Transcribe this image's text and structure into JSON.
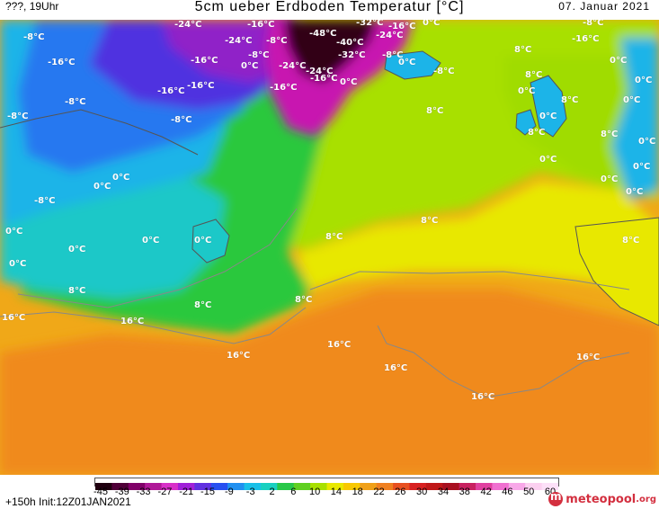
{
  "header": {
    "left": "???, 19Uhr",
    "title": "5cm ueber Erdboden Temperatur [°C]",
    "right": "07. Januar 2021"
  },
  "map": {
    "colors": {
      "water": "#f0a818",
      "deep_orange": "#f08a1c",
      "yellow": "#e8e800",
      "lime": "#a8e000",
      "green": "#2cc83c",
      "teal": "#1cc8c8",
      "cyan": "#1cb4e8",
      "blue": "#2878f0",
      "indigo": "#5030e0",
      "purple": "#9020c8",
      "magenta": "#c818b0",
      "dark": "#300018",
      "coast": "#555555",
      "isotherm": "#888888"
    },
    "labels": [
      {
        "text": "-24°C"
      },
      {
        "text": "-16°C"
      },
      {
        "text": "-32°C"
      },
      {
        "text": "0°C"
      },
      {
        "text": "-8°C"
      },
      {
        "text": "-24°C"
      },
      {
        "text": "-8°C"
      },
      {
        "text": "-48°C"
      },
      {
        "text": "-16°C"
      },
      {
        "text": "-24°C"
      },
      {
        "text": "-16°C"
      },
      {
        "text": "-40°C"
      },
      {
        "text": "-32°C"
      },
      {
        "text": "-8°C"
      },
      {
        "text": "-16°C"
      },
      {
        "text": "-8°C"
      },
      {
        "text": "-8°C"
      },
      {
        "text": "0°C"
      },
      {
        "text": "-24°C"
      },
      {
        "text": "-24°C"
      },
      {
        "text": "-16°C"
      },
      {
        "text": "0°C"
      },
      {
        "text": "-16°C"
      },
      {
        "text": "-16°C"
      },
      {
        "text": "-16°C"
      },
      {
        "text": "-16°C"
      },
      {
        "text": "0°C"
      },
      {
        "text": "-8°C"
      },
      {
        "text": "0°C"
      },
      {
        "text": "0°C"
      },
      {
        "text": "8°C"
      },
      {
        "text": "8°C"
      },
      {
        "text": "0°C"
      },
      {
        "text": "0°C"
      },
      {
        "text": "-8°C"
      },
      {
        "text": "-8°C"
      },
      {
        "text": "-8°C"
      },
      {
        "text": "8°C"
      },
      {
        "text": "8°C"
      },
      {
        "text": "0°C"
      },
      {
        "text": "8°C"
      },
      {
        "text": "8°C"
      },
      {
        "text": "0°C"
      },
      {
        "text": "0°C"
      },
      {
        "text": "0°C"
      },
      {
        "text": "0°C"
      },
      {
        "text": "0°C"
      },
      {
        "text": "-8°C"
      },
      {
        "text": "0°C"
      },
      {
        "text": "0°C"
      },
      {
        "text": "8°C"
      },
      {
        "text": "0°C"
      },
      {
        "text": "8°C"
      },
      {
        "text": "0°C"
      },
      {
        "text": "0°C"
      },
      {
        "text": "0°C"
      },
      {
        "text": "8°C"
      },
      {
        "text": "8°C"
      },
      {
        "text": "8°C"
      },
      {
        "text": "0°C"
      },
      {
        "text": "16°C"
      },
      {
        "text": "16°C"
      },
      {
        "text": "16°C"
      },
      {
        "text": "16°C"
      },
      {
        "text": "16°C"
      },
      {
        "text": "16°C"
      },
      {
        "text": "16°C"
      },
      {
        "text": "8°C"
      }
    ]
  },
  "colorbar": {
    "ticks": [
      "-45",
      "-39",
      "-33",
      "-27",
      "-21",
      "-15",
      "-9",
      "-3",
      "2",
      "6",
      "10",
      "14",
      "18",
      "22",
      "26",
      "30",
      "34",
      "38",
      "42",
      "46",
      "50",
      "60"
    ],
    "colors": [
      "#200010",
      "#500038",
      "#800068",
      "#b01898",
      "#d830c8",
      "#a020d8",
      "#6030e0",
      "#2850f0",
      "#2090f0",
      "#18c0e8",
      "#18d0c0",
      "#28c848",
      "#60d020",
      "#a8e000",
      "#e8e800",
      "#f8c800",
      "#f0a018",
      "#f08020",
      "#e85020",
      "#d82020",
      "#c01818",
      "#a81020",
      "#c82060",
      "#e040a0",
      "#f070d0",
      "#f8a8e8",
      "#fcd0f0",
      "#fce0f8"
    ]
  },
  "footer": {
    "init": "+150h Init:12Z01JAN2021",
    "logo_name": "meteopool",
    "logo_tld": ".org"
  }
}
